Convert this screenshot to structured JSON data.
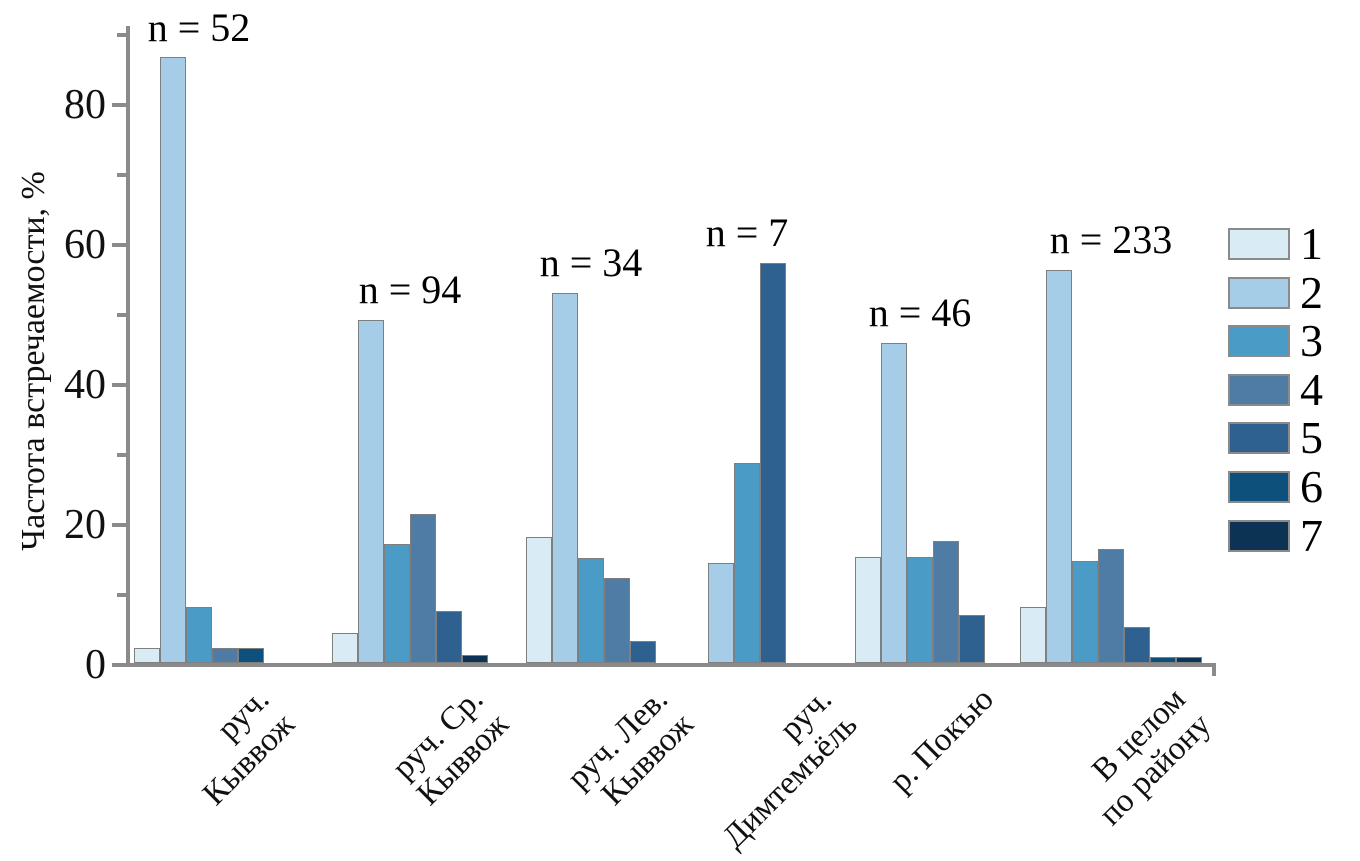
{
  "figure": {
    "ylabel": "Частота встречаемости, %"
  },
  "chart_data": {
    "type": "bar",
    "title": "",
    "xlabel": "",
    "ylabel": "Частота встречаемости, %",
    "ylim": [
      0,
      90
    ],
    "yticks_major": [
      0,
      20,
      40,
      60,
      80
    ],
    "yticks_minor": [
      10,
      30,
      50,
      70,
      90
    ],
    "grid": false,
    "legend_position": "right",
    "legend": [
      {
        "id": "1",
        "color": "#d9ecf5"
      },
      {
        "id": "2",
        "color": "#a6cde8"
      },
      {
        "id": "3",
        "color": "#4a9cc7"
      },
      {
        "id": "4",
        "color": "#4f7ca4"
      },
      {
        "id": "5",
        "color": "#2e6190"
      },
      {
        "id": "6",
        "color": "#0d507c"
      },
      {
        "id": "7",
        "color": "#0d3354"
      }
    ],
    "groups": [
      {
        "label_lines": [
          "руч.",
          "Кыввож"
        ],
        "n_label": "n = 52",
        "bars": [
          {
            "category": "1",
            "value": 2.2
          },
          {
            "category": "2",
            "value": 86.5
          },
          {
            "category": "3",
            "value": 8.0
          },
          {
            "category": "4",
            "value": 2.2
          },
          {
            "category": "6",
            "value": 2.2
          }
        ]
      },
      {
        "label_lines": [
          "руч. Ср.",
          "Кыввож"
        ],
        "n_label": "n = 94",
        "bars": [
          {
            "category": "1",
            "value": 4.3
          },
          {
            "category": "2",
            "value": 49.0
          },
          {
            "category": "3",
            "value": 17.0
          },
          {
            "category": "4",
            "value": 21.3
          },
          {
            "category": "5",
            "value": 7.4
          },
          {
            "category": "7",
            "value": 1.1
          }
        ]
      },
      {
        "label_lines": [
          "руч. Лев.",
          "Кыввож"
        ],
        "n_label": "n = 34",
        "bars": [
          {
            "category": "1",
            "value": 18.0
          },
          {
            "category": "2",
            "value": 52.9
          },
          {
            "category": "3",
            "value": 15.0
          },
          {
            "category": "4",
            "value": 12.1
          },
          {
            "category": "5",
            "value": 3.1
          }
        ]
      },
      {
        "label_lines": [
          "руч.",
          "Димтемъёль"
        ],
        "n_label": "n = 7",
        "bars": [
          {
            "category": "2",
            "value": 14.3
          },
          {
            "category": "3",
            "value": 28.6
          },
          {
            "category": "5",
            "value": 57.1
          }
        ]
      },
      {
        "label_lines": [
          "р. Покъю"
        ],
        "n_label": "n = 46",
        "bars": [
          {
            "category": "1",
            "value": 15.2
          },
          {
            "category": "2",
            "value": 45.7
          },
          {
            "category": "3",
            "value": 15.2
          },
          {
            "category": "4",
            "value": 17.4
          },
          {
            "category": "5",
            "value": 6.8
          }
        ]
      },
      {
        "label_lines": [
          "В целом",
          "по району"
        ],
        "n_label": "n = 233",
        "bars": [
          {
            "category": "1",
            "value": 8.0
          },
          {
            "category": "2",
            "value": 56.2
          },
          {
            "category": "3",
            "value": 14.6
          },
          {
            "category": "4",
            "value": 16.3
          },
          {
            "category": "5",
            "value": 5.2
          },
          {
            "category": "6",
            "value": 0.9
          },
          {
            "category": "7",
            "value": 0.9
          }
        ]
      }
    ]
  }
}
